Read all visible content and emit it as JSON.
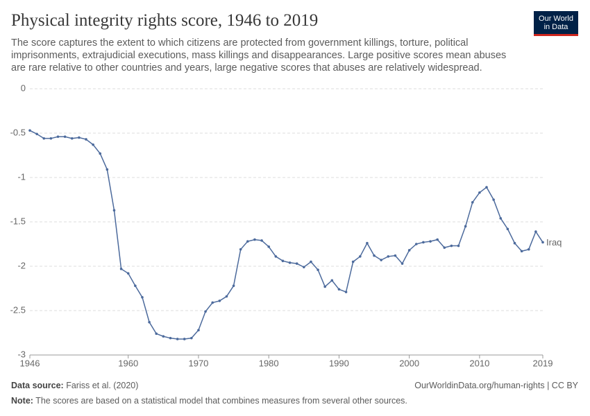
{
  "chart_data": {
    "type": "line",
    "title": "Physical integrity rights score, 1946 to 2019",
    "subtitle": "The score captures the extent to which citizens are protected from government killings, torture, political imprisonments, extrajudicial executions, mass killings and disappearances. Large positive scores mean abuses are rare relative to other countries and years, large negative scores that abuses are relatively widespread.",
    "logo": [
      "Our World",
      "in Data"
    ],
    "source_label": "Data source:",
    "source": "Fariss et al. (2020)",
    "url": "OurWorldinData.org/human-rights | CC BY",
    "note_label": "Note:",
    "note": "The scores are based on a statistical model that combines measures from several other sources.",
    "x": [
      1946,
      1947,
      1948,
      1949,
      1950,
      1951,
      1952,
      1953,
      1954,
      1955,
      1956,
      1957,
      1958,
      1959,
      1960,
      1961,
      1962,
      1963,
      1964,
      1965,
      1966,
      1967,
      1968,
      1969,
      1970,
      1971,
      1972,
      1973,
      1974,
      1975,
      1976,
      1977,
      1978,
      1979,
      1980,
      1981,
      1982,
      1983,
      1984,
      1985,
      1986,
      1987,
      1988,
      1989,
      1990,
      1991,
      1992,
      1993,
      1994,
      1995,
      1996,
      1997,
      1998,
      1999,
      2000,
      2001,
      2002,
      2003,
      2004,
      2005,
      2006,
      2007,
      2008,
      2009,
      2010,
      2011,
      2012,
      2013,
      2014,
      2015,
      2016,
      2017,
      2018,
      2019
    ],
    "series": [
      {
        "name": "Iraq",
        "color": "#4c6a9c",
        "values": [
          -0.47,
          -0.51,
          -0.56,
          -0.56,
          -0.54,
          -0.54,
          -0.56,
          -0.55,
          -0.57,
          -0.63,
          -0.73,
          -0.91,
          -1.37,
          -2.03,
          -2.08,
          -2.22,
          -2.35,
          -2.63,
          -2.76,
          -2.79,
          -2.81,
          -2.82,
          -2.82,
          -2.81,
          -2.72,
          -2.51,
          -2.41,
          -2.39,
          -2.34,
          -2.22,
          -1.81,
          -1.72,
          -1.7,
          -1.71,
          -1.78,
          -1.89,
          -1.94,
          -1.96,
          -1.97,
          -2.01,
          -1.95,
          -2.04,
          -2.23,
          -2.16,
          -2.26,
          -2.29,
          -1.95,
          -1.89,
          -1.74,
          -1.88,
          -1.93,
          -1.89,
          -1.88,
          -1.97,
          -1.82,
          -1.75,
          -1.73,
          -1.72,
          -1.7,
          -1.79,
          -1.77,
          -1.77,
          -1.55,
          -1.28,
          -1.17,
          -1.11,
          -1.25,
          -1.46,
          -1.58,
          -1.74,
          -1.83,
          -1.81,
          -1.61,
          -1.73
        ]
      }
    ],
    "xlim": [
      1946,
      2019
    ],
    "xticks": [
      1946,
      1960,
      1970,
      1980,
      1990,
      2000,
      2010,
      2019
    ],
    "ylim": [
      -3,
      0
    ],
    "yticks": [
      0,
      -0.5,
      -1,
      -1.5,
      -2,
      -2.5,
      -3
    ],
    "grid": true
  }
}
